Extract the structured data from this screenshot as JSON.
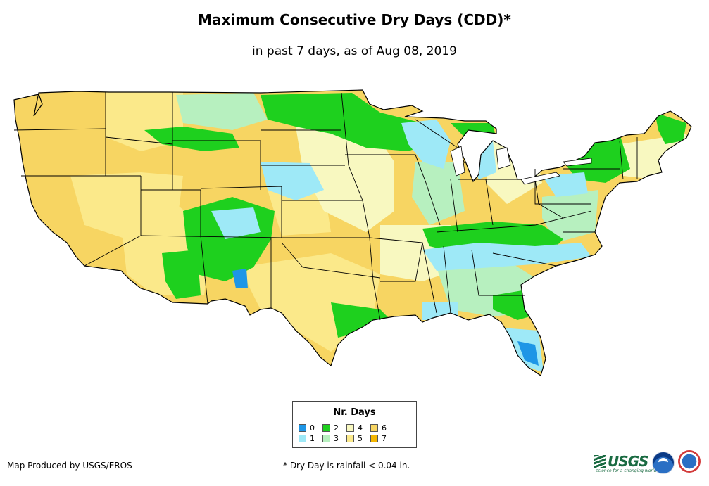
{
  "header": {
    "title": "Maximum Consecutive Dry Days (CDD)*",
    "subtitle": "in past 7 days, as of Aug 08, 2019"
  },
  "legend": {
    "title": "Nr. Days",
    "items": [
      {
        "label": "0",
        "color": "#1e96e6"
      },
      {
        "label": "1",
        "color": "#9ee9f7"
      },
      {
        "label": "2",
        "color": "#1ed01e"
      },
      {
        "label": "3",
        "color": "#b7f0bf"
      },
      {
        "label": "4",
        "color": "#f8f8c0"
      },
      {
        "label": "5",
        "color": "#fbe98a"
      },
      {
        "label": "6",
        "color": "#f7d562"
      },
      {
        "label": "7",
        "color": "#f4b600"
      }
    ]
  },
  "footer": {
    "credit": "Map Produced by USGS/EROS",
    "footnote": "* Dry Day is rainfall < 0.04 in.",
    "usgs_logo_text": "USGS",
    "usgs_tagline": "science for a changing world"
  },
  "map": {
    "outline_color": "#000000"
  }
}
